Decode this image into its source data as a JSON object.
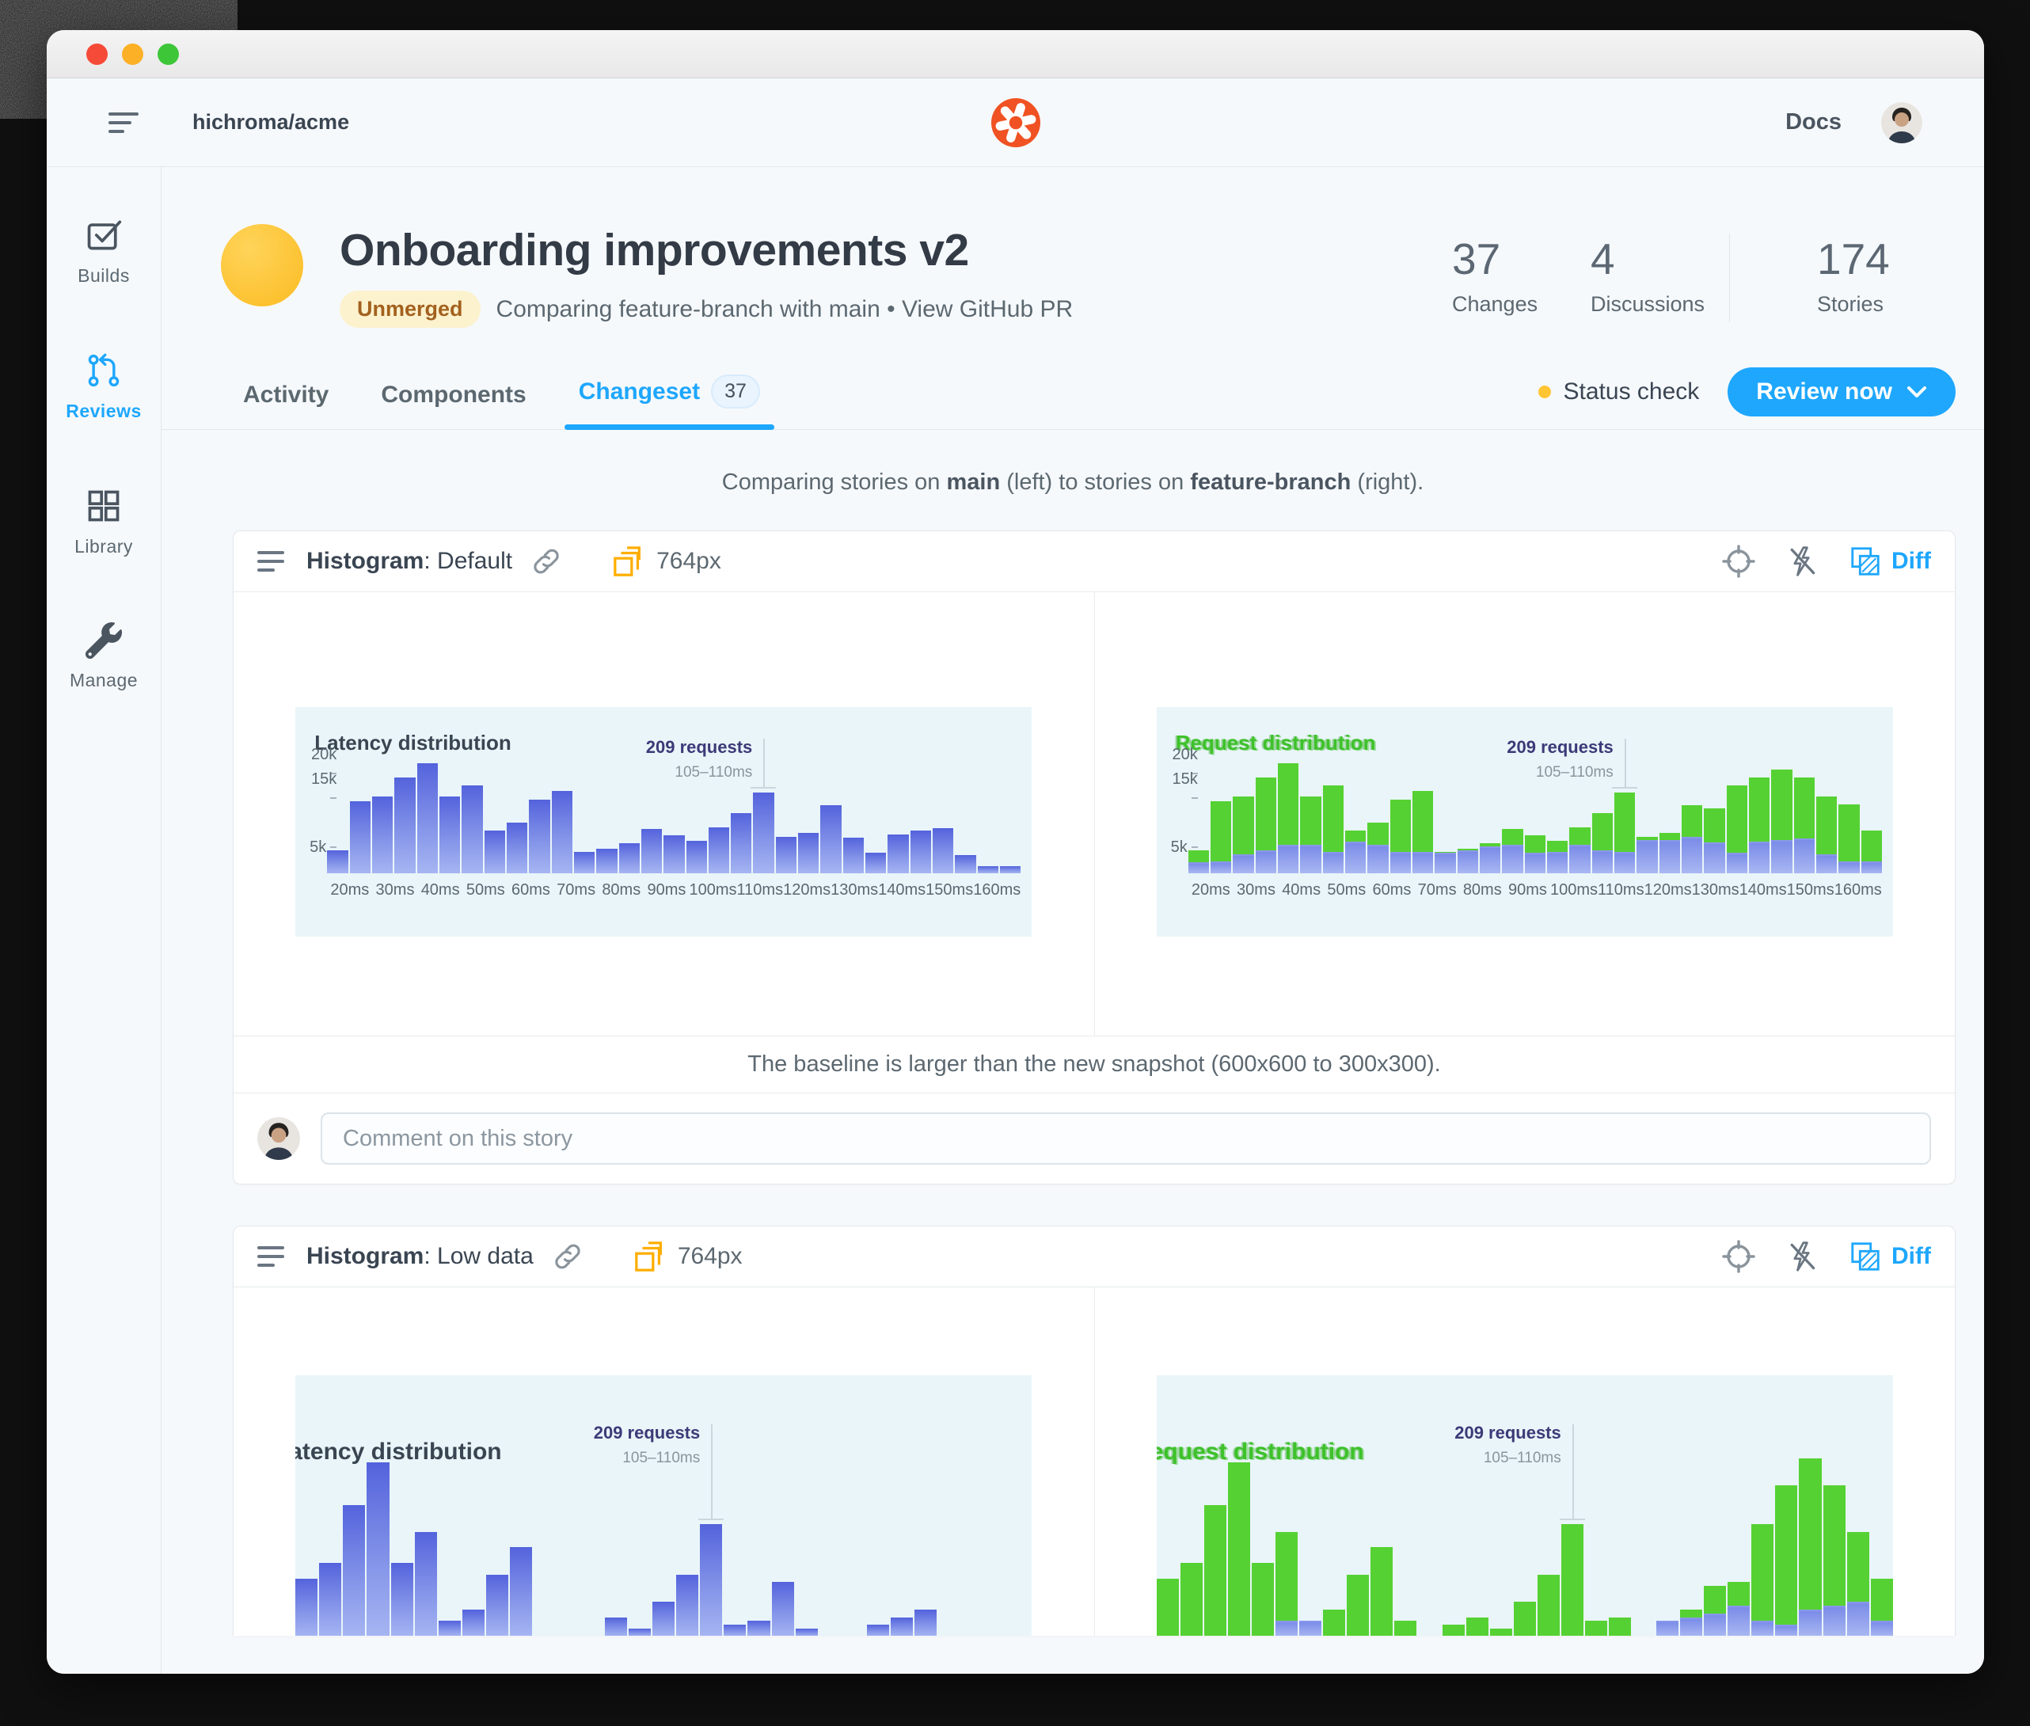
{
  "window": {
    "traffic_lights": [
      "close",
      "minimize",
      "zoom"
    ]
  },
  "app_header": {
    "org": "hichroma/acme",
    "docs_label": "Docs"
  },
  "sidebar": {
    "items": [
      {
        "label": "Builds"
      },
      {
        "label": "Reviews",
        "active": true
      },
      {
        "label": "Library"
      },
      {
        "label": "Manage"
      }
    ]
  },
  "build_header": {
    "title": "Onboarding improvements v2",
    "badge": "Unmerged",
    "subtitle": "Comparing feature-branch with main",
    "subtitle_sep": "•",
    "subtitle_link": "View GitHub PR",
    "stats": [
      {
        "value": "37",
        "label": "Changes"
      },
      {
        "value": "4",
        "label": "Discussions"
      },
      {
        "value": "174",
        "label": "Stories"
      }
    ]
  },
  "tabs": {
    "items": [
      {
        "label": "Activity"
      },
      {
        "label": "Components"
      },
      {
        "label": "Changeset",
        "badge": "37",
        "active": true
      }
    ],
    "status_check": "Status check",
    "review_button": "Review now"
  },
  "compare_note": {
    "p1": "Comparing stories on ",
    "b1": "main",
    "p2": " (left) to stories on ",
    "b2": "feature-branch",
    "p3": " (right)."
  },
  "cards": [
    {
      "component": "Histogram",
      "sep": ":",
      "story": "Default",
      "viewport": "764px",
      "diff_label": "Diff",
      "baseline_note": "The baseline is larger than the new snapshot (600x600 to 300x300).",
      "comment_placeholder": "Comment on this story"
    },
    {
      "component": "Histogram",
      "sep": ":",
      "story": "Low data",
      "viewport": "764px",
      "diff_label": "Diff"
    }
  ],
  "colors": {
    "accent_blue": "#1EA7FD",
    "diff_green": "#56D133",
    "bar_blue_top": "#5463DC",
    "bar_blue_bottom": "#A6B5F2",
    "status_yellow": "#FFC533",
    "logo_orange": "#F05223",
    "badge_bg": "#FCF2CE",
    "badge_text": "#A3611E",
    "chart_bg": "#E9F5F9"
  },
  "chart_data": [
    {
      "type": "bar",
      "position": "card1-left",
      "snapshot": "baseline",
      "title": "Latency distribution",
      "title_style": "dark",
      "ylim": [
        0,
        24000
      ],
      "y_ticks": [
        {
          "label": "20k",
          "value": 20
        },
        {
          "label": "15k",
          "value": 15
        },
        {
          "label": "5k",
          "value": 5
        }
      ],
      "x_ticks": [
        "20ms",
        "30ms",
        "40ms",
        "50ms",
        "60ms",
        "70ms",
        "80ms",
        "90ms",
        "100ms",
        "110ms",
        "120ms",
        "130ms",
        "140ms",
        "150ms",
        "160ms"
      ],
      "series": [
        {
          "name": "requests",
          "color": "blue",
          "values_k": [
            4.7,
            14.5,
            15.5,
            19.3,
            22.2,
            15.5,
            17.8,
            8.6,
            10.2,
            14.9,
            16.6,
            4.4,
            4.9,
            6.1,
            9.0,
            7.7,
            6.6,
            9.3,
            12.2,
            16.3,
            7.4,
            8.2,
            13.8,
            7.2,
            4.2,
            7.9,
            8.6,
            9.1,
            3.7,
            1.4,
            1.4
          ]
        }
      ],
      "annotation": {
        "label": "209 requests",
        "sublabel": "105–110ms",
        "bar_index": 19
      }
    },
    {
      "type": "bar",
      "position": "card1-right",
      "snapshot": "new-with-diff",
      "title": "Request distribution",
      "title_style": "green-diff",
      "ylim": [
        0,
        24000
      ],
      "y_ticks": [
        {
          "label": "20k",
          "value": 20
        },
        {
          "label": "15k",
          "value": 15
        },
        {
          "label": "5k",
          "value": 5
        }
      ],
      "x_ticks": [
        "20ms",
        "30ms",
        "40ms",
        "50ms",
        "60ms",
        "70ms",
        "80ms",
        "90ms",
        "100ms",
        "110ms",
        "120ms",
        "130ms",
        "140ms",
        "150ms",
        "160ms"
      ],
      "series": [
        {
          "name": "changed",
          "color": "green",
          "values_k": [
            4.7,
            14.5,
            15.5,
            19.3,
            22.2,
            15.5,
            17.8,
            8.6,
            10.2,
            14.9,
            16.6,
            4.4,
            4.9,
            6.1,
            9.0,
            7.7,
            6.6,
            9.3,
            12.2,
            16.3,
            7.4,
            8.2,
            13.8,
            13.2,
            17.8,
            19.3,
            21.0,
            19.3,
            15.5,
            13.9,
            8.6
          ]
        },
        {
          "name": "unchanged",
          "color": "blue",
          "values_k": [
            2.3,
            2.4,
            3.9,
            4.7,
            5.7,
            5.7,
            4.4,
            6.4,
            5.7,
            4.4,
            4.4,
            4.2,
            4.7,
            5.4,
            5.7,
            4.1,
            4.4,
            5.7,
            4.7,
            4.3,
            6.7,
            6.7,
            7.4,
            6.2,
            4.2,
            6.4,
            6.7,
            7.1,
            3.9,
            2.4,
            2.4
          ]
        }
      ],
      "annotation": {
        "label": "209 requests",
        "sublabel": "105–110ms",
        "bar_index": 19
      }
    },
    {
      "type": "bar",
      "position": "card2-left",
      "snapshot": "baseline",
      "cropped": true,
      "title": "atency distribution",
      "title_style": "dark",
      "ylim": [
        0,
        24000
      ],
      "y_ticks": [],
      "x_ticks": [],
      "series": [
        {
          "name": "requests",
          "color": "blue",
          "values_k": [
            7.5,
            9.5,
            17,
            22.5,
            9.5,
            13.5,
            2,
            3.5,
            8,
            11.5,
            0,
            0,
            0,
            2.5,
            1,
            4.5,
            8,
            14.5,
            1.5,
            2,
            7,
            1,
            0,
            0,
            1.5,
            2.5,
            3.5,
            0,
            0,
            0,
            0
          ]
        }
      ],
      "annotation": {
        "label": "209 requests",
        "sublabel": "105–110ms",
        "bar_index": 17
      }
    },
    {
      "type": "bar",
      "position": "card2-right",
      "snapshot": "new-with-diff",
      "cropped": true,
      "title": "equest distribution",
      "title_style": "green-diff",
      "ylim": [
        0,
        24000
      ],
      "y_ticks": [],
      "x_ticks": [],
      "series": [
        {
          "name": "changed",
          "color": "green",
          "values_k": [
            7.5,
            9.5,
            17,
            22.5,
            9.5,
            13.5,
            2,
            3.5,
            8,
            11.5,
            2,
            0,
            1.5,
            2.5,
            1,
            4.5,
            8,
            14.5,
            2,
            2.5,
            0,
            2,
            3.5,
            6.5,
            7,
            14.5,
            19.5,
            23,
            19.5,
            13.5,
            7.5
          ]
        },
        {
          "name": "unchanged",
          "color": "blue",
          "values_k": [
            0,
            0,
            0,
            0,
            0,
            2,
            2,
            0,
            0,
            0,
            0,
            0,
            0,
            0,
            0,
            0,
            0,
            0,
            0,
            0,
            0,
            2,
            2.5,
            3,
            4,
            2,
            1.5,
            3.5,
            4,
            4.5,
            2
          ]
        }
      ],
      "annotation": {
        "label": "209 requests",
        "sublabel": "105–110ms",
        "bar_index": 17
      }
    }
  ]
}
